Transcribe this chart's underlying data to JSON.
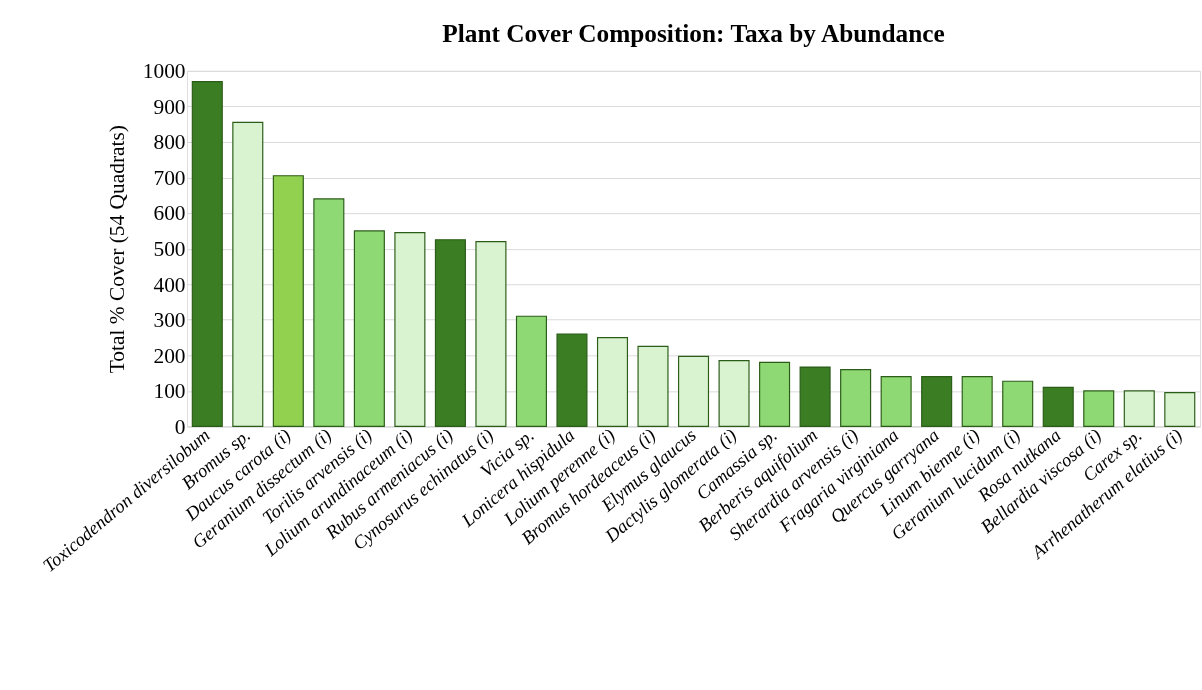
{
  "chart_data": {
    "type": "bar",
    "title": "Plant Cover Composition: Taxa by Abundance",
    "ylabel": "Total % Cover (54 Quadrats)",
    "categories": [
      "Toxicodendron diversilobum",
      "Bromus sp.",
      "Daucus carota (i)",
      "Geranium dissectum (i)",
      "Torilis arvensis  (i)",
      "Lolium arundinaceum  (i)",
      "Rubus armeniacus (i)",
      "Cynosurus echinatus (i)",
      "Vicia sp.",
      "Lonicera hispidula",
      "Lolium perenne (i)",
      "Bromus hordeaceus (i)",
      "Elymus glaucus",
      "Dactylis glomerata (i)",
      "Camassia sp.",
      "Berberis aquifolium",
      "Sherardia arvensis (i)",
      "Fragaria virginiana",
      "Quercus garryana",
      "Linum bienne (i)",
      "Geranium lucidum (i)",
      "Rosa nutkana",
      "Bellardia viscosa (i)",
      "Carex sp.",
      "Arrhenatherum elatius (i)"
    ],
    "values": [
      970,
      855,
      705,
      640,
      550,
      545,
      525,
      520,
      310,
      260,
      250,
      225,
      197,
      185,
      180,
      167,
      160,
      140,
      140,
      140,
      127,
      110,
      100,
      100,
      95
    ],
    "colors": [
      "#3a7d22",
      "#d9f2d0",
      "#92d050",
      "#8ed973",
      "#8ed973",
      "#d9f2d0",
      "#3a7d22",
      "#d9f2d0",
      "#8ed973",
      "#3a7d22",
      "#d9f2d0",
      "#d9f2d0",
      "#d9f2d0",
      "#d9f2d0",
      "#8ed973",
      "#3a7d22",
      "#8ed973",
      "#8ed973",
      "#3a7d22",
      "#8ed973",
      "#8ed973",
      "#3a7d22",
      "#8ed973",
      "#d9f2d0",
      "#d9f2d0"
    ],
    "ylim": [
      0,
      1000
    ],
    "yticks": [
      0,
      100,
      200,
      300,
      400,
      500,
      600,
      700,
      800,
      900,
      1000
    ],
    "grid": "y"
  }
}
